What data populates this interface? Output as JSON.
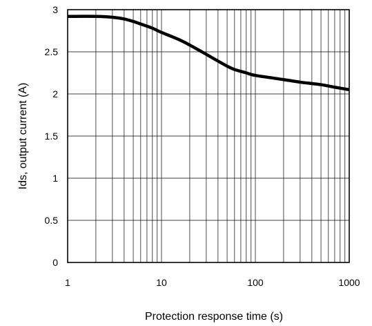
{
  "chart_data": {
    "type": "line",
    "xscale": "log",
    "xlim": [
      1,
      1000
    ],
    "ylim": [
      0,
      3
    ],
    "xlabel": "Protection response time (s)",
    "ylabel": "Ids, output current (A)",
    "xticks": [
      1,
      10,
      100,
      1000
    ],
    "xtick_labels": [
      "1",
      "10",
      "100",
      "1000"
    ],
    "yticks": [
      0,
      0.5,
      1,
      1.5,
      2,
      2.5,
      3
    ],
    "ytick_labels": [
      "0",
      "0.5",
      "1",
      "1.5",
      "2",
      "2.5",
      "3"
    ],
    "grid": true,
    "legend": false,
    "series": [
      {
        "color": "#000000",
        "x": [
          1,
          2,
          3,
          4,
          5,
          6,
          8,
          10,
          15,
          20,
          30,
          40,
          50,
          60,
          80,
          100,
          200,
          300,
          500,
          700,
          1000
        ],
        "y": [
          2.92,
          2.92,
          2.91,
          2.89,
          2.86,
          2.83,
          2.78,
          2.73,
          2.65,
          2.58,
          2.47,
          2.39,
          2.33,
          2.29,
          2.25,
          2.22,
          2.17,
          2.14,
          2.11,
          2.08,
          2.05
        ]
      }
    ]
  }
}
